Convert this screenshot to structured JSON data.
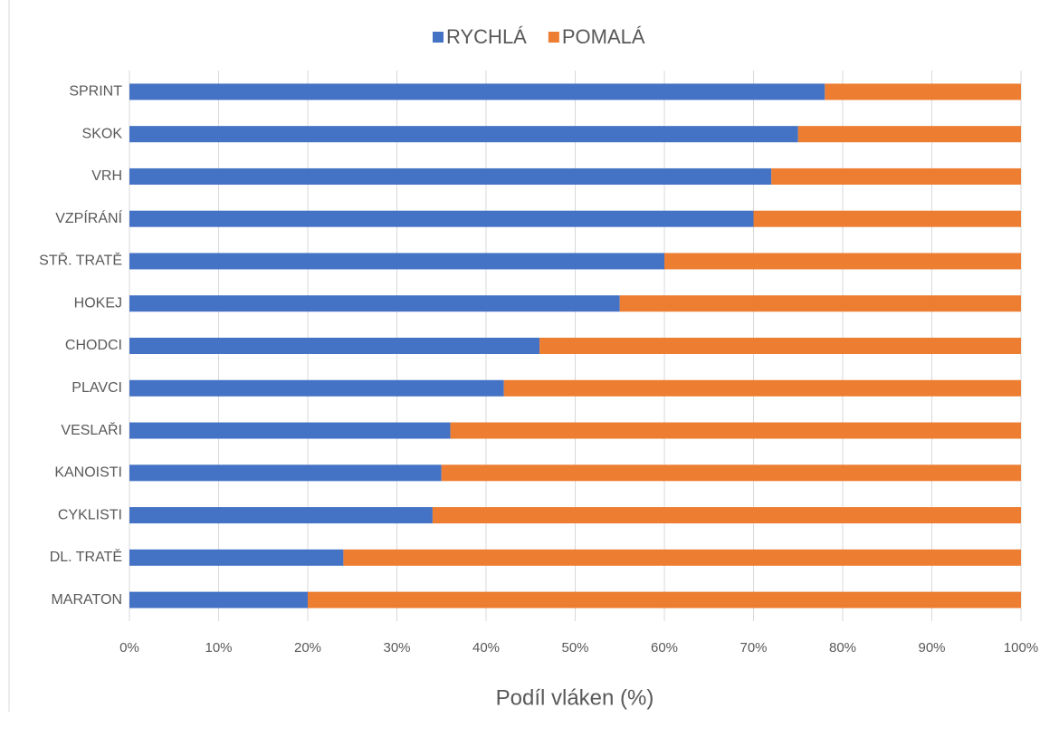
{
  "chart_data": {
    "type": "stacked_bar_horizontal",
    "categories": [
      "SPRINT",
      "SKOK",
      "VRH",
      "VZPÍRÁNÍ",
      "STŘ. TRATĚ",
      "HOKEJ",
      "CHODCI",
      "PLAVCI",
      "VESLAŘI",
      "KANOISTI",
      "CYKLISTI",
      "DL. TRATĚ",
      "MARATON"
    ],
    "series": [
      {
        "name": "RYCHLÁ",
        "color": "#4472c4",
        "values": [
          78,
          75,
          72,
          70,
          60,
          55,
          46,
          42,
          36,
          35,
          34,
          24,
          20
        ]
      },
      {
        "name": "POMALÁ",
        "color": "#ed7d31",
        "values": [
          22,
          25,
          28,
          30,
          40,
          45,
          54,
          58,
          64,
          65,
          66,
          76,
          80
        ]
      }
    ],
    "xlabel": "Podíl vláken (%)",
    "xlim": [
      0,
      100
    ],
    "xticks": [
      {
        "value": 0,
        "label": "0%"
      },
      {
        "value": 10,
        "label": "10%"
      },
      {
        "value": 20,
        "label": "20%"
      },
      {
        "value": 30,
        "label": "30%"
      },
      {
        "value": 40,
        "label": "40%"
      },
      {
        "value": 50,
        "label": "50%"
      },
      {
        "value": 60,
        "label": "60%"
      },
      {
        "value": 70,
        "label": "70%"
      },
      {
        "value": 80,
        "label": "80%"
      },
      {
        "value": 90,
        "label": "90%"
      },
      {
        "value": 100,
        "label": "100%"
      }
    ],
    "grid": true,
    "legend": "top"
  }
}
